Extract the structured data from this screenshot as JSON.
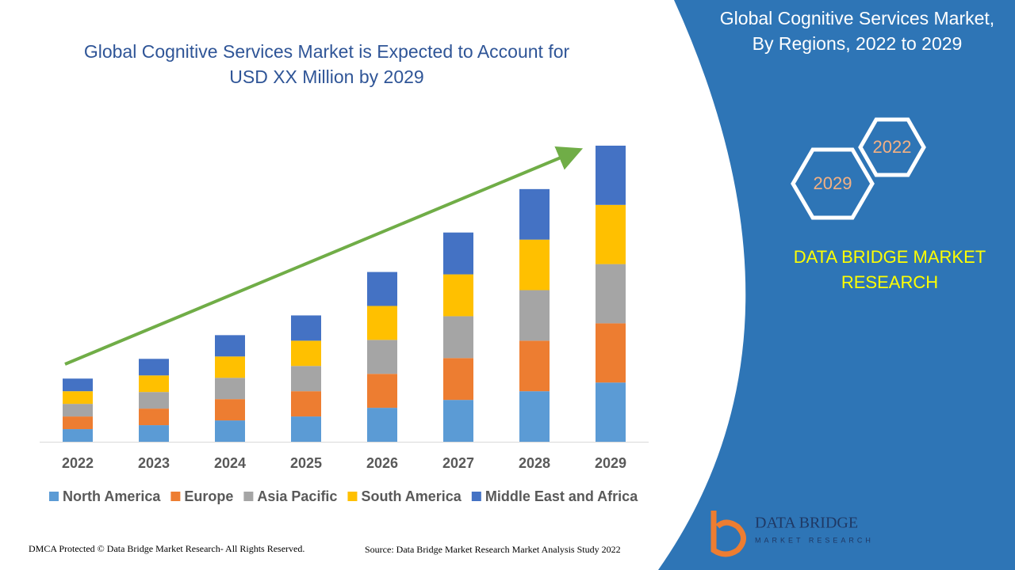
{
  "chart_data": {
    "type": "stacked-bar",
    "title": [
      "Global Cognitive Services Market is Expected to Account for",
      "USD XX Million by 2029"
    ],
    "categories": [
      "2022",
      "2023",
      "2024",
      "2025",
      "2026",
      "2027",
      "2028",
      "2029"
    ],
    "series": [
      {
        "name": "North America",
        "color": "#5b9bd5",
        "values": [
          16,
          21,
          27,
          32,
          43,
          53,
          64,
          75
        ]
      },
      {
        "name": "Europe",
        "color": "#ed7d31",
        "values": [
          16,
          21,
          27,
          32,
          43,
          53,
          64,
          75
        ]
      },
      {
        "name": "Asia Pacific",
        "color": "#a5a5a5",
        "values": [
          16,
          21,
          27,
          32,
          43,
          53,
          64,
          75
        ]
      },
      {
        "name": "South America",
        "color": "#ffc000",
        "values": [
          16,
          21,
          27,
          32,
          43,
          53,
          64,
          75
        ]
      },
      {
        "name": "Middle East and Africa",
        "color": "#4472c4",
        "values": [
          16,
          21,
          27,
          32,
          43,
          53,
          64,
          75
        ]
      }
    ],
    "ylim": [
      0,
      375
    ],
    "legend": "bottom"
  },
  "panel": {
    "title": [
      "Global Cognitive Services Market,",
      "By Regions, 2022 to 2029"
    ],
    "hex_labels": [
      "2022",
      "2029"
    ],
    "brand": [
      "DATA BRIDGE MARKET",
      "RESEARCH"
    ],
    "logo": [
      "DATA BRIDGE",
      "MARKET RESEARCH"
    ]
  },
  "footer": {
    "copyright": "DMCA Protected © Data Bridge Market Research- All Rights Reserved.",
    "source": "Source: Data Bridge Market Research Market Analysis Study 2022"
  }
}
